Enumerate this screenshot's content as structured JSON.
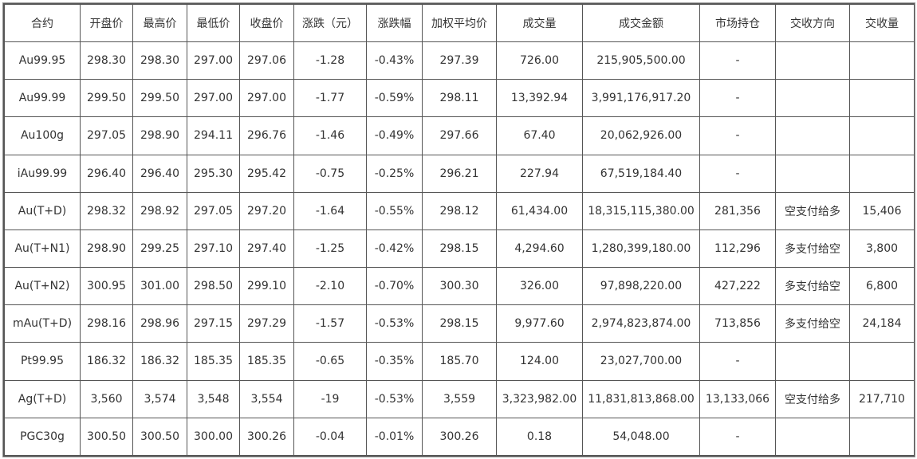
{
  "headers": [
    "合约",
    "开盘价",
    "最高价",
    "最低价",
    "收盘价",
    "涨跌（元）",
    "涨跌幅",
    "加权平均价",
    "成交量",
    "成交金额",
    "市场持仓",
    "交收方向",
    "交收量"
  ],
  "rows": [
    [
      "Au99.95",
      "298.30",
      "298.30",
      "297.00",
      "297.06",
      "-1.28",
      "-0.43%",
      "297.39",
      "726.00",
      "215,905,500.00",
      "-",
      "",
      ""
    ],
    [
      "Au99.99",
      "299.50",
      "299.50",
      "297.00",
      "297.00",
      "-1.77",
      "-0.59%",
      "298.11",
      "13,392.94",
      "3,991,176,917.20",
      "-",
      "",
      ""
    ],
    [
      "Au100g",
      "297.05",
      "298.90",
      "294.11",
      "296.76",
      "-1.46",
      "-0.49%",
      "297.66",
      "67.40",
      "20,062,926.00",
      "-",
      "",
      ""
    ],
    [
      "iAu99.99",
      "296.40",
      "296.40",
      "295.30",
      "295.42",
      "-0.75",
      "-0.25%",
      "296.21",
      "227.94",
      "67,519,184.40",
      "-",
      "",
      ""
    ],
    [
      "Au(T+D)",
      "298.32",
      "298.92",
      "297.05",
      "297.20",
      "-1.64",
      "-0.55%",
      "298.12",
      "61,434.00",
      "18,315,115,380.00",
      "281,356",
      "空支付给多",
      "15,406"
    ],
    [
      "Au(T+N1)",
      "298.90",
      "299.25",
      "297.10",
      "297.40",
      "-1.25",
      "-0.42%",
      "298.15",
      "4,294.60",
      "1,280,399,180.00",
      "112,296",
      "多支付给空",
      "3,800"
    ],
    [
      "Au(T+N2)",
      "300.95",
      "301.00",
      "298.50",
      "299.10",
      "-2.10",
      "-0.70%",
      "300.30",
      "326.00",
      "97,898,220.00",
      "427,222",
      "多支付给空",
      "6,800"
    ],
    [
      "mAu(T+D)",
      "298.16",
      "298.96",
      "297.15",
      "297.29",
      "-1.57",
      "-0.53%",
      "298.15",
      "9,977.60",
      "2,974,823,874.00",
      "713,856",
      "多支付给空",
      "24,184"
    ],
    [
      "Pt99.95",
      "186.32",
      "186.32",
      "185.35",
      "185.35",
      "-0.65",
      "-0.35%",
      "185.70",
      "124.00",
      "23,027,700.00",
      "-",
      "",
      ""
    ],
    [
      "Ag(T+D)",
      "3,560",
      "3,574",
      "3,548",
      "3,554",
      "-19",
      "-0.53%",
      "3,559",
      "3,323,982.00",
      "11,831,813,868.00",
      "13,133,066",
      "空支付给多",
      "217,710"
    ],
    [
      "PGC30g",
      "300.50",
      "300.50",
      "300.00",
      "300.26",
      "-0.04",
      "-0.01%",
      "300.26",
      "0.18",
      "54,048.00",
      "-",
      "",
      ""
    ]
  ]
}
